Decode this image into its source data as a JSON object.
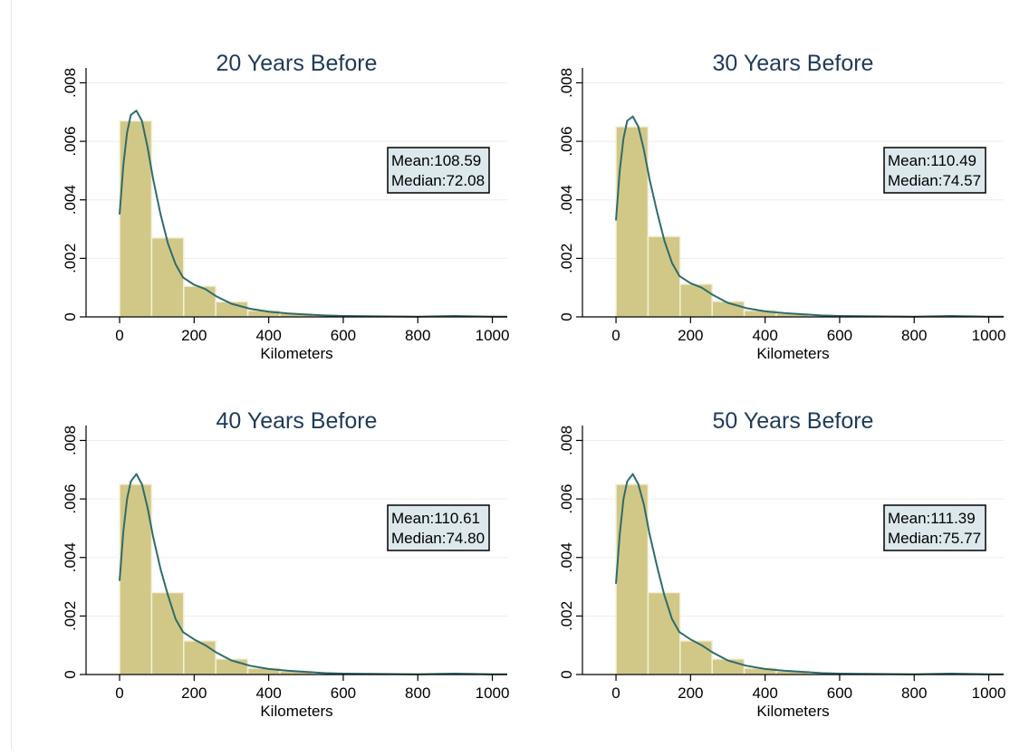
{
  "colors": {
    "bar_fill": "#d1c888",
    "bar_stroke": "#f3f0d9",
    "density_line": "#2f6b6b",
    "grid": "#ececec",
    "title": "#1e3a5a",
    "stat_box_fill": "#dce8ec"
  },
  "chart_data": [
    {
      "type": "bar",
      "title": "20 Years Before",
      "xlabel": "Kilometers",
      "ylabel": "",
      "xlim": [
        -90,
        1040
      ],
      "ylim": [
        0,
        0.0082
      ],
      "xticks": [
        0,
        200,
        400,
        600,
        800,
        1000
      ],
      "xtick_labels": [
        "0",
        "200",
        "400",
        "600",
        "800",
        "1000"
      ],
      "yticks": [
        0,
        0.002,
        0.004,
        0.006,
        0.008
      ],
      "ytick_labels": [
        "0",
        ".002",
        ".004",
        ".006",
        ".008"
      ],
      "grid": true,
      "bin_edges": [
        0,
        86,
        172,
        258,
        344,
        430,
        516,
        602,
        688,
        774,
        860,
        946,
        1032
      ],
      "values": [
        0.0067,
        0.0027,
        0.00105,
        0.00052,
        0.00022,
        0.00012,
        4e-05,
        2e-05,
        1e-05,
        5e-06,
        1e-05,
        5e-06
      ],
      "density": {
        "x": [
          0,
          10,
          20,
          30,
          45,
          60,
          75,
          90,
          110,
          130,
          150,
          170,
          200,
          230,
          260,
          300,
          350,
          400,
          450,
          500,
          550,
          600,
          700,
          800,
          900,
          1000,
          1040
        ],
        "y": [
          0.0035,
          0.0052,
          0.0063,
          0.0069,
          0.00705,
          0.0067,
          0.0058,
          0.0047,
          0.0035,
          0.0025,
          0.0018,
          0.00135,
          0.0011,
          0.00095,
          0.0007,
          0.00045,
          0.00028,
          0.00018,
          0.00012,
          8e-05,
          5e-05,
          3e-05,
          2e-05,
          1e-05,
          3e-05,
          1e-05,
          1e-05
        ]
      },
      "stats": {
        "mean_label": "Mean:108.59",
        "median_label": "Median:72.08"
      }
    },
    {
      "type": "bar",
      "title": "30 Years Before",
      "xlabel": "Kilometers",
      "ylabel": "",
      "xlim": [
        -90,
        1040
      ],
      "ylim": [
        0,
        0.0082
      ],
      "xticks": [
        0,
        200,
        400,
        600,
        800,
        1000
      ],
      "xtick_labels": [
        "0",
        "200",
        "400",
        "600",
        "800",
        "1000"
      ],
      "yticks": [
        0,
        0.002,
        0.004,
        0.006,
        0.008
      ],
      "ytick_labels": [
        "0",
        ".002",
        ".004",
        ".006",
        ".008"
      ],
      "grid": true,
      "bin_edges": [
        0,
        86,
        172,
        258,
        344,
        430,
        516,
        602,
        688,
        774,
        860,
        946,
        1032
      ],
      "values": [
        0.0065,
        0.00275,
        0.00112,
        0.00053,
        0.00022,
        0.00012,
        4e-05,
        2e-05,
        1e-05,
        5e-06,
        1e-05,
        5e-06
      ],
      "density": {
        "x": [
          0,
          10,
          20,
          30,
          45,
          60,
          75,
          90,
          110,
          130,
          150,
          170,
          200,
          230,
          260,
          300,
          350,
          400,
          450,
          500,
          550,
          600,
          700,
          800,
          900,
          1000,
          1040
        ],
        "y": [
          0.0033,
          0.005,
          0.0061,
          0.0067,
          0.00685,
          0.0065,
          0.0057,
          0.0047,
          0.0036,
          0.0026,
          0.00185,
          0.0014,
          0.00115,
          0.001,
          0.00075,
          0.00048,
          0.0003,
          0.00019,
          0.00013,
          9e-05,
          5e-05,
          3e-05,
          2e-05,
          1e-05,
          3e-05,
          1e-05,
          1e-05
        ]
      },
      "stats": {
        "mean_label": "Mean:110.49",
        "median_label": "Median:74.57"
      }
    },
    {
      "type": "bar",
      "title": "40 Years Before",
      "xlabel": "Kilometers",
      "ylabel": "",
      "xlim": [
        -90,
        1040
      ],
      "ylim": [
        0,
        0.0082
      ],
      "xticks": [
        0,
        200,
        400,
        600,
        800,
        1000
      ],
      "xtick_labels": [
        "0",
        "200",
        "400",
        "600",
        "800",
        "1000"
      ],
      "yticks": [
        0,
        0.002,
        0.004,
        0.006,
        0.008
      ],
      "ytick_labels": [
        "0",
        ".002",
        ".004",
        ".006",
        ".008"
      ],
      "grid": true,
      "bin_edges": [
        0,
        86,
        172,
        258,
        344,
        430,
        516,
        602,
        688,
        774,
        860,
        946,
        1032
      ],
      "values": [
        0.0065,
        0.0028,
        0.00115,
        0.00053,
        0.00022,
        0.00012,
        4e-05,
        2e-05,
        1e-05,
        5e-06,
        1e-05,
        5e-06
      ],
      "density": {
        "x": [
          0,
          10,
          20,
          30,
          45,
          60,
          75,
          90,
          110,
          130,
          150,
          170,
          200,
          230,
          260,
          300,
          350,
          400,
          450,
          500,
          550,
          600,
          700,
          800,
          900,
          1000,
          1040
        ],
        "y": [
          0.0032,
          0.0049,
          0.006,
          0.0066,
          0.00685,
          0.0065,
          0.0057,
          0.0047,
          0.0036,
          0.0027,
          0.0019,
          0.00145,
          0.0012,
          0.001,
          0.00075,
          0.00048,
          0.0003,
          0.00019,
          0.00013,
          9e-05,
          5e-05,
          3e-05,
          2e-05,
          1e-05,
          3e-05,
          1e-05,
          1e-05
        ]
      },
      "stats": {
        "mean_label": "Mean:110.61",
        "median_label": "Median:74.80"
      }
    },
    {
      "type": "bar",
      "title": "50 Years Before",
      "xlabel": "Kilometers",
      "ylabel": "",
      "xlim": [
        -90,
        1040
      ],
      "ylim": [
        0,
        0.0082
      ],
      "xticks": [
        0,
        200,
        400,
        600,
        800,
        1000
      ],
      "xtick_labels": [
        "0",
        "200",
        "400",
        "600",
        "800",
        "1000"
      ],
      "yticks": [
        0,
        0.002,
        0.004,
        0.006,
        0.008
      ],
      "ytick_labels": [
        "0",
        ".002",
        ".004",
        ".006",
        ".008"
      ],
      "grid": true,
      "bin_edges": [
        0,
        86,
        172,
        258,
        344,
        430,
        516,
        602,
        688,
        774,
        860,
        946,
        1032
      ],
      "values": [
        0.0065,
        0.0028,
        0.00115,
        0.00053,
        0.00022,
        0.00012,
        4e-05,
        2e-05,
        1e-05,
        5e-06,
        1e-05,
        5e-06
      ],
      "density": {
        "x": [
          0,
          10,
          20,
          30,
          45,
          60,
          75,
          90,
          110,
          130,
          150,
          170,
          200,
          230,
          260,
          300,
          350,
          400,
          450,
          500,
          550,
          600,
          700,
          800,
          900,
          1000,
          1040
        ],
        "y": [
          0.0031,
          0.0048,
          0.006,
          0.0066,
          0.00685,
          0.0065,
          0.0058,
          0.0048,
          0.0037,
          0.0027,
          0.0019,
          0.00145,
          0.0012,
          0.001,
          0.00075,
          0.00048,
          0.0003,
          0.00019,
          0.00013,
          9e-05,
          5e-05,
          3e-05,
          2e-05,
          1e-05,
          3e-05,
          1e-05,
          1e-05
        ]
      },
      "stats": {
        "mean_label": "Mean:111.39",
        "median_label": "Median:75.77"
      }
    }
  ]
}
